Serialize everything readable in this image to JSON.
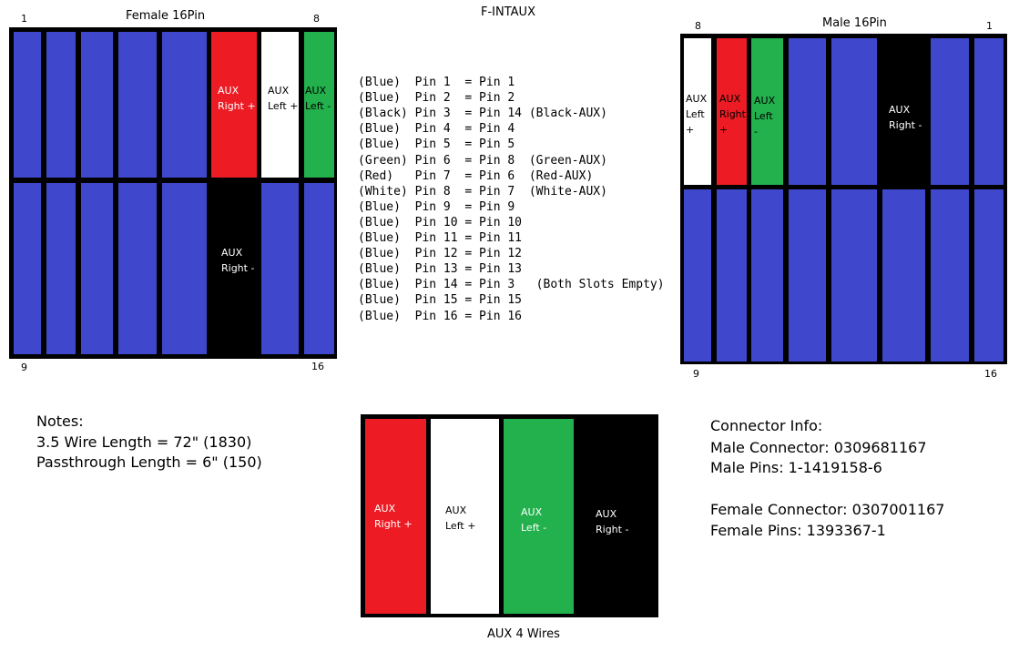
{
  "title": "F-INTAUX",
  "female": {
    "title": "Female 16Pin",
    "pin_labels": [
      "1",
      "8",
      "9",
      "16"
    ],
    "aux_labels": [
      [
        "AUX",
        "Right +"
      ],
      [
        "AUX",
        "Left +"
      ],
      [
        "AUX",
        "Left -"
      ],
      [
        "AUX",
        "Right -"
      ]
    ]
  },
  "male": {
    "title": "Male 16Pin",
    "pin_labels": [
      "8",
      "1",
      "9",
      "16"
    ],
    "aux_labels": [
      [
        "AUX",
        "Left",
        "+"
      ],
      [
        "AUX",
        "Right",
        "+"
      ],
      [
        "AUX",
        "Left",
        "-"
      ],
      [
        "AUX",
        "Right -"
      ]
    ]
  },
  "pin_map": [
    "(Blue)  Pin 1  = Pin 1",
    "(Blue)  Pin 2  = Pin 2",
    "(Black) Pin 3  = Pin 14 (Black-AUX)",
    "(Blue)  Pin 4  = Pin 4",
    "(Blue)  Pin 5  = Pin 5",
    "(Green) Pin 6  = Pin 8  (Green-AUX)",
    "(Red)   Pin 7  = Pin 6  (Red-AUX)",
    "(White) Pin 8  = Pin 7  (White-AUX)",
    "(Blue)  Pin 9  = Pin 9",
    "(Blue)  Pin 10 = Pin 10",
    "(Blue)  Pin 11 = Pin 11",
    "(Blue)  Pin 12 = Pin 12",
    "(Blue)  Pin 13 = Pin 13",
    "(Blue)  Pin 14 = Pin 3   (Both Slots Empty)",
    "(Blue)  Pin 15 = Pin 15",
    "(Blue)  Pin 16 = Pin 16"
  ],
  "notes": [
    "Notes:",
    "3.5 Wire Length = 72\" (1830)",
    "Passthrough Length = 6\" (150)"
  ],
  "aux_wires": {
    "caption": "AUX 4 Wires",
    "labels": [
      [
        "AUX",
        "Right +"
      ],
      [
        "AUX",
        "Left +"
      ],
      [
        "AUX",
        "Left -"
      ],
      [
        "AUX",
        "Right -"
      ]
    ]
  },
  "connector_info": [
    "Connector Info:",
    "Male Connector: 0309681167",
    "Male Pins: 1-1419158-6",
    "Female Connector: 0307001167",
    "Female Pins: 1393367-1"
  ]
}
